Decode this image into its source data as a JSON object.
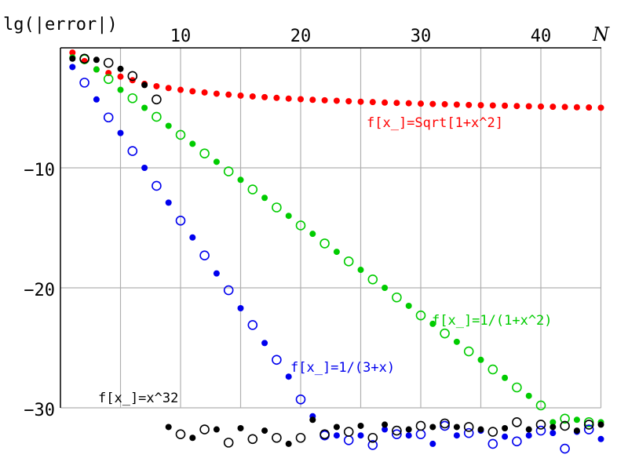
{
  "chart_data": {
    "type": "scatter",
    "title": "",
    "xlabel": "N",
    "ylabel": "lg(|error|)",
    "xlim": [
      0,
      45
    ],
    "ylim": [
      -35,
      0
    ],
    "x_ticks": [
      10,
      20,
      30,
      40
    ],
    "y_ticks": [
      -10,
      -20,
      -30
    ],
    "grid": true,
    "grid_x": [
      5,
      10,
      15,
      20,
      25,
      30,
      35,
      40,
      45
    ],
    "grid_y": [
      -10,
      -20,
      -30
    ],
    "legend_position": "inline labels",
    "marker_note": "open circles for even N, filled dots for odd N (where distinguishable)",
    "series": [
      {
        "name": "f[x_]=Sqrt[1+x^2]",
        "color": "#ff0000",
        "x": [
          1,
          2,
          3,
          4,
          5,
          6,
          7,
          8,
          9,
          10,
          11,
          12,
          13,
          14,
          15,
          16,
          17,
          18,
          19,
          20,
          21,
          22,
          23,
          24,
          25,
          26,
          27,
          28,
          29,
          30,
          31,
          32,
          33,
          34,
          35,
          36,
          37,
          38,
          39,
          40,
          41,
          42,
          43,
          44,
          45
        ],
        "values": [
          -0.4,
          -1.1,
          -1.8,
          -2.1,
          -2.4,
          -2.7,
          -3.0,
          -3.2,
          -3.35,
          -3.5,
          -3.62,
          -3.72,
          -3.82,
          -3.9,
          -3.98,
          -4.05,
          -4.11,
          -4.17,
          -4.23,
          -4.28,
          -4.33,
          -4.37,
          -4.41,
          -4.45,
          -4.49,
          -4.52,
          -4.56,
          -4.59,
          -4.62,
          -4.65,
          -4.68,
          -4.7,
          -4.73,
          -4.76,
          -4.78,
          -4.8,
          -4.82,
          -4.85,
          -4.87,
          -4.89,
          -4.91,
          -4.93,
          -4.95,
          -4.97,
          -4.99
        ],
        "label_pos": {
          "x": 467,
          "y": 162
        }
      },
      {
        "name": "f[x_]=1/(1+x^2)",
        "color": "#00cc00",
        "x": [
          1,
          2,
          3,
          4,
          5,
          6,
          7,
          8,
          9,
          10,
          11,
          12,
          13,
          14,
          15,
          16,
          17,
          18,
          19,
          20,
          21,
          22,
          23,
          24,
          25,
          26,
          27,
          28,
          29,
          30,
          31,
          32,
          33,
          34,
          35,
          36,
          37,
          38,
          39,
          40,
          41,
          42,
          43,
          44,
          45
        ],
        "values": [
          -0.8,
          -0.95,
          -1.8,
          -2.6,
          -3.5,
          -4.2,
          -5.0,
          -5.75,
          -6.5,
          -7.25,
          -8.0,
          -8.8,
          -9.5,
          -10.3,
          -11.0,
          -11.8,
          -12.5,
          -13.3,
          -14.0,
          -14.8,
          -15.5,
          -16.3,
          -17.0,
          -17.8,
          -18.5,
          -19.3,
          -20.0,
          -20.8,
          -21.5,
          -22.3,
          -23.0,
          -23.8,
          -24.5,
          -25.3,
          -26.0,
          -26.8,
          -27.5,
          -28.3,
          -29.0,
          -29.8,
          -31.2,
          -30.9,
          -31.0,
          -31.2,
          -31.2
        ],
        "label_pos": {
          "x": 550,
          "y": 414
        }
      },
      {
        "name": "f[x_]=1/(3+x)",
        "color": "#0000ee",
        "x": [
          1,
          2,
          3,
          4,
          5,
          6,
          7,
          8,
          9,
          10,
          11,
          12,
          13,
          14,
          15,
          16,
          17,
          18,
          19,
          20,
          21,
          22,
          23,
          24,
          25,
          26,
          27,
          28,
          29,
          30,
          31,
          32,
          33,
          34,
          35,
          36,
          37,
          38,
          39,
          40,
          41,
          42,
          43,
          44,
          45
        ],
        "values": [
          -1.6,
          -2.9,
          -4.3,
          -5.8,
          -7.1,
          -8.6,
          -10.0,
          -11.5,
          -12.9,
          -14.4,
          -15.8,
          -17.3,
          -18.8,
          -20.2,
          -21.7,
          -23.1,
          -24.6,
          -26.0,
          -27.4,
          -29.3,
          -30.7,
          -32.3,
          -32.3,
          -32.7,
          -32.3,
          -33.1,
          -31.8,
          -32.2,
          -32.3,
          -32.2,
          -33.0,
          -31.5,
          -32.3,
          -32.1,
          -31.9,
          -33.0,
          -32.4,
          -32.8,
          -32.3,
          -31.9,
          -32.1,
          -33.4,
          -32.0,
          -31.8,
          -32.6
        ],
        "label_pos": {
          "x": 370,
          "y": 474
        }
      },
      {
        "name": "f[x_]=x^32",
        "color": "#000000",
        "x": [
          1,
          2,
          3,
          4,
          5,
          6,
          7,
          8,
          9,
          10,
          11,
          12,
          13,
          14,
          15,
          16,
          17,
          18,
          19,
          20,
          21,
          22,
          23,
          24,
          25,
          26,
          27,
          28,
          29,
          30,
          31,
          32,
          33,
          34,
          35,
          36,
          37,
          38,
          39,
          40,
          41,
          42,
          43,
          44,
          45
        ],
        "values": [
          -0.9,
          -0.9,
          -1.0,
          -1.25,
          -1.75,
          -2.35,
          -3.1,
          -4.3,
          -31.6,
          -32.2,
          -32.5,
          -31.8,
          -31.8,
          -32.9,
          -31.7,
          -32.6,
          -31.9,
          -32.5,
          -33.0,
          -32.5,
          -31.0,
          -32.2,
          -31.6,
          -32.0,
          -31.5,
          -32.5,
          -31.4,
          -31.9,
          -31.8,
          -31.5,
          -31.6,
          -31.3,
          -31.6,
          -31.6,
          -31.8,
          -32.0,
          -31.7,
          -31.2,
          -31.8,
          -31.4,
          -31.6,
          -31.5,
          -31.9,
          -31.4,
          -31.4
        ],
        "label_pos": {
          "x": 125,
          "y": 513
        }
      }
    ]
  }
}
